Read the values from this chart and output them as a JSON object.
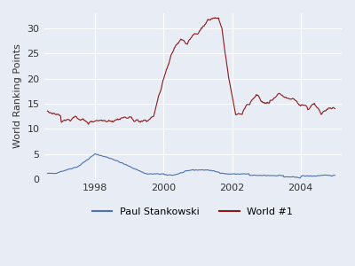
{
  "title": "",
  "ylabel": "World Ranking Points",
  "xlabel": "",
  "background_color": "#e8ecf5",
  "axes_background": "#e8ecf5",
  "grid_color": "white",
  "paul_color": "#4c72b0",
  "world1_color": "#8b1a1a",
  "legend_labels": [
    "Paul Stankowski",
    "World #1"
  ],
  "xlim_start": 1996.5,
  "xlim_end": 2005.2,
  "ylim": [
    0,
    33
  ],
  "yticks": [
    0,
    5,
    10,
    15,
    20,
    25,
    30
  ],
  "xticks": [
    1998,
    2000,
    2002,
    2004
  ]
}
